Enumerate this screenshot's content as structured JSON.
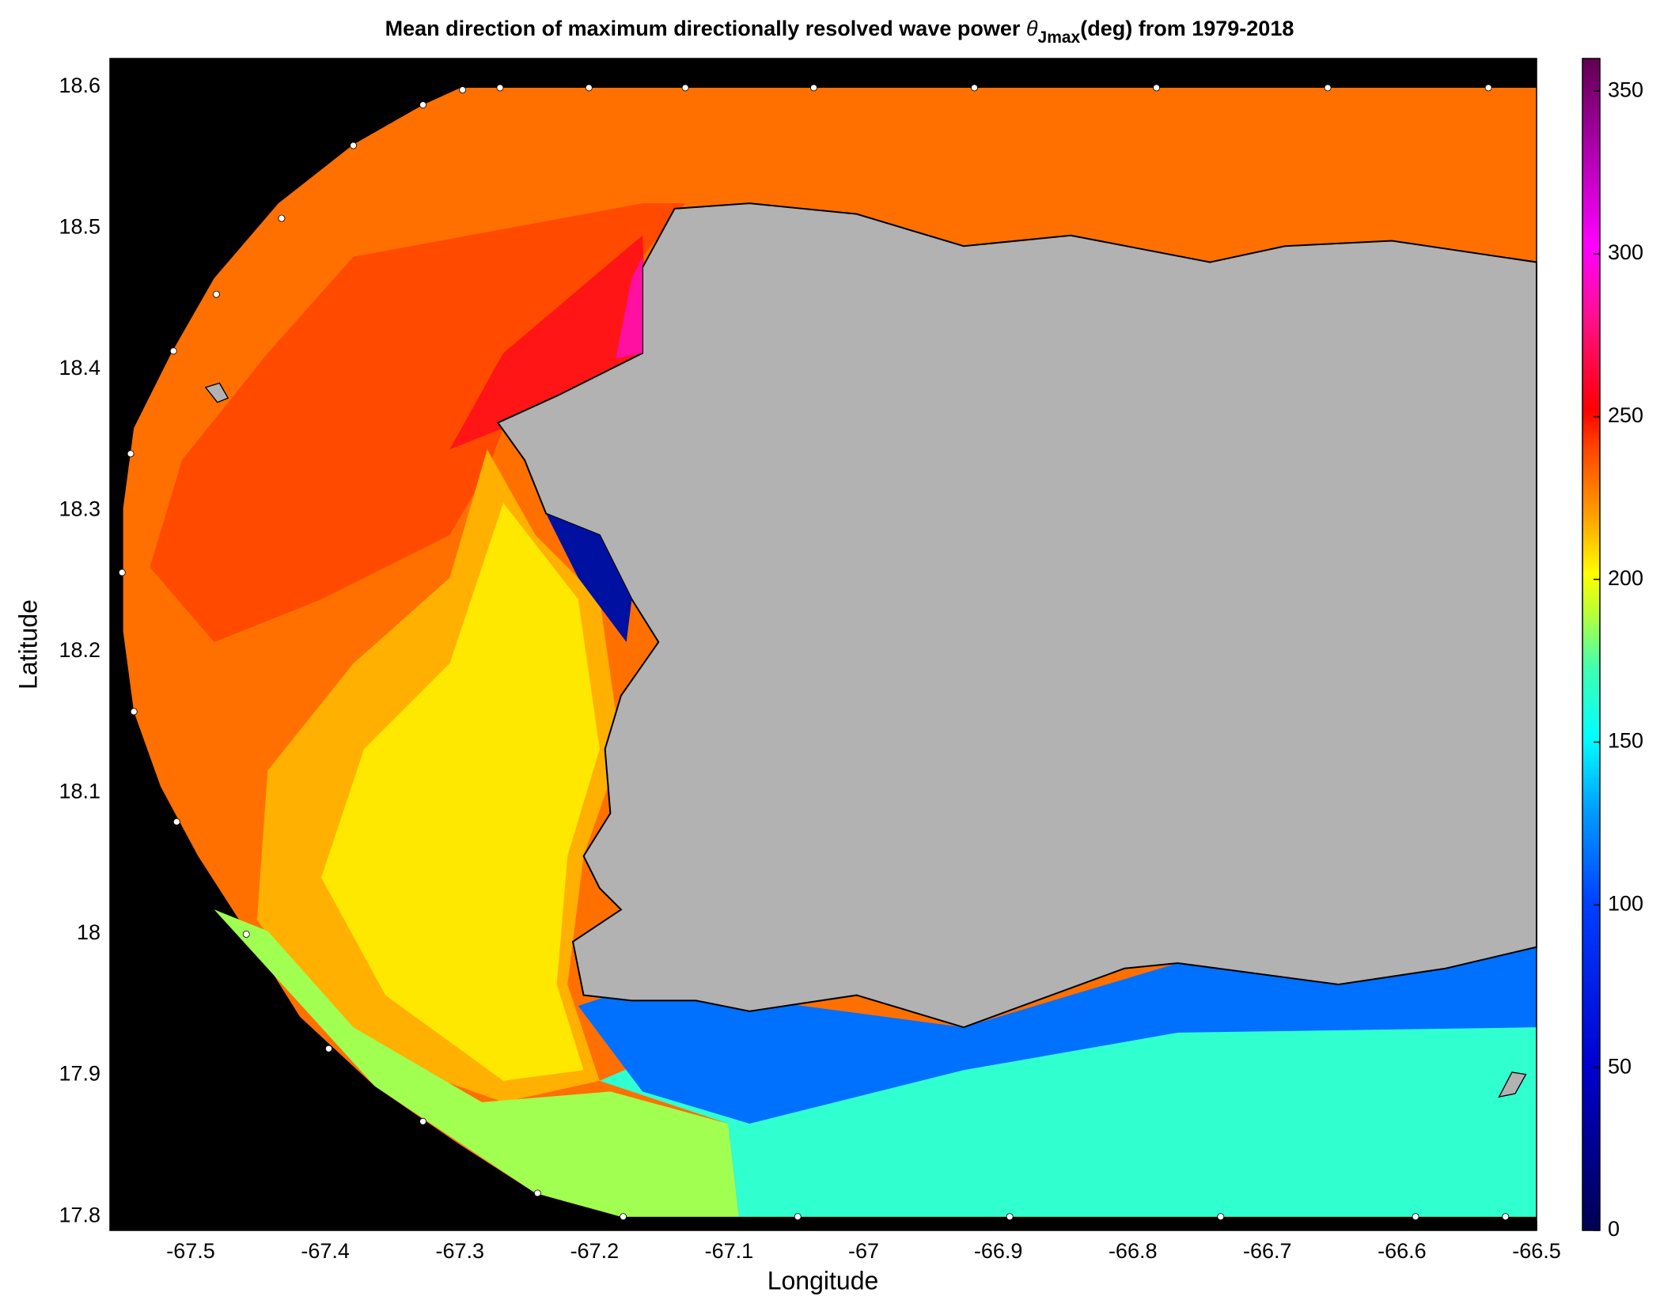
{
  "chart_data": {
    "type": "heatmap",
    "title": {
      "text": "Mean direction of maximum directionally resolved wave power ",
      "symbol": "θ",
      "subscript": "Jmax",
      "suffix": "(deg) from 1979-2018"
    },
    "xlabel": "Longitude",
    "ylabel": "Latitude",
    "xlim": [
      -67.56,
      -66.5
    ],
    "ylim": [
      17.79,
      18.62
    ],
    "xticks": [
      -67.5,
      -67.4,
      -67.3,
      -67.2,
      -67.1,
      -67,
      -66.9,
      -66.8,
      -66.7,
      -66.6,
      -66.5
    ],
    "yticks": [
      17.8,
      17.9,
      18,
      18.1,
      18.2,
      18.3,
      18.4,
      18.5,
      18.6
    ],
    "colorbar": {
      "lim": [
        0,
        360
      ],
      "ticks": [
        0,
        50,
        100,
        150,
        200,
        250,
        300,
        350
      ]
    }
  }
}
